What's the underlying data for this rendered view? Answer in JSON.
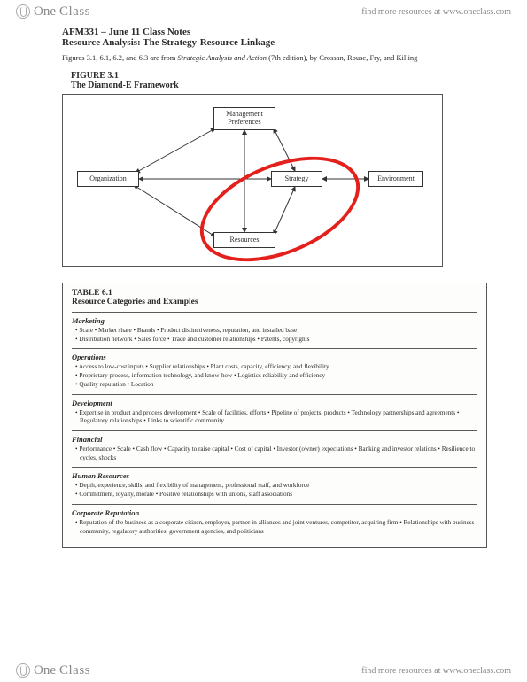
{
  "brand": {
    "one": "One",
    "class": "Class"
  },
  "header": {
    "find_text": "find more resources at www.oneclass.com"
  },
  "footer": {
    "find_text": "find more resources at www.oneclass.com"
  },
  "doc": {
    "course_title": "AFM331 – June 11 Class Notes",
    "subtitle": "Resource Analysis: The Strategy-Resource Linkage",
    "source_prefix": "Figures 3.1, 6.1, 6.2, and 6.3 are from ",
    "source_title": "Strategic Analysis and Action",
    "source_suffix": " (7th edition), by Crossan, Rouse, Fry, and Killing"
  },
  "figure": {
    "number": "FIGURE 3.1",
    "title": "The Diamond-E Framework",
    "nodes": {
      "management": "Management\nPreferences",
      "organization": "Organization",
      "strategy": "Strategy",
      "environment": "Environment",
      "resources": "Resources"
    },
    "highlight_color": "#e3201b"
  },
  "table": {
    "number": "TABLE 6.1",
    "title": "Resource Categories and Examples",
    "categories": [
      {
        "name": "Marketing",
        "items": [
          "Scale • Market share • Brands • Product distinctiveness, reputation, and installed base",
          "Distribution network • Sales force • Trade and customer relationships • Patents, copyrights"
        ]
      },
      {
        "name": "Operations",
        "items": [
          "Access to low-cost inputs • Supplier relationships • Plant costs, capacity, efficiency, and flexibility",
          "Proprietary process, information technology, and know-how • Logistics reliability and efficiency",
          "Quality reputation • Location"
        ]
      },
      {
        "name": "Development",
        "items": [
          "Expertise in product and process development • Scale of facilities, efforts • Pipeline of projects, products • Technology partnerships and agreements • Regulatory relationships • Links to scientific community"
        ]
      },
      {
        "name": "Financial",
        "items": [
          "Performance • Scale • Cash flow • Capacity to raise capital • Cost of capital • Investor (owner) expectations • Banking and investor relations • Resilience to cycles, shocks"
        ]
      },
      {
        "name": "Human Resources",
        "items": [
          "Depth, experience, skills, and flexibility of management, professional staff, and workforce",
          "Commitment, loyalty, morale • Positive relationships with unions, staff associations"
        ]
      },
      {
        "name": "Corporate Reputation",
        "items": [
          "Reputation of the business as a corporate citizen, employer, partner in alliances and joint ventures, competitor, acquiring firm • Relationships with business community, regulatory authorities, government agencies, and politicians"
        ]
      }
    ]
  }
}
